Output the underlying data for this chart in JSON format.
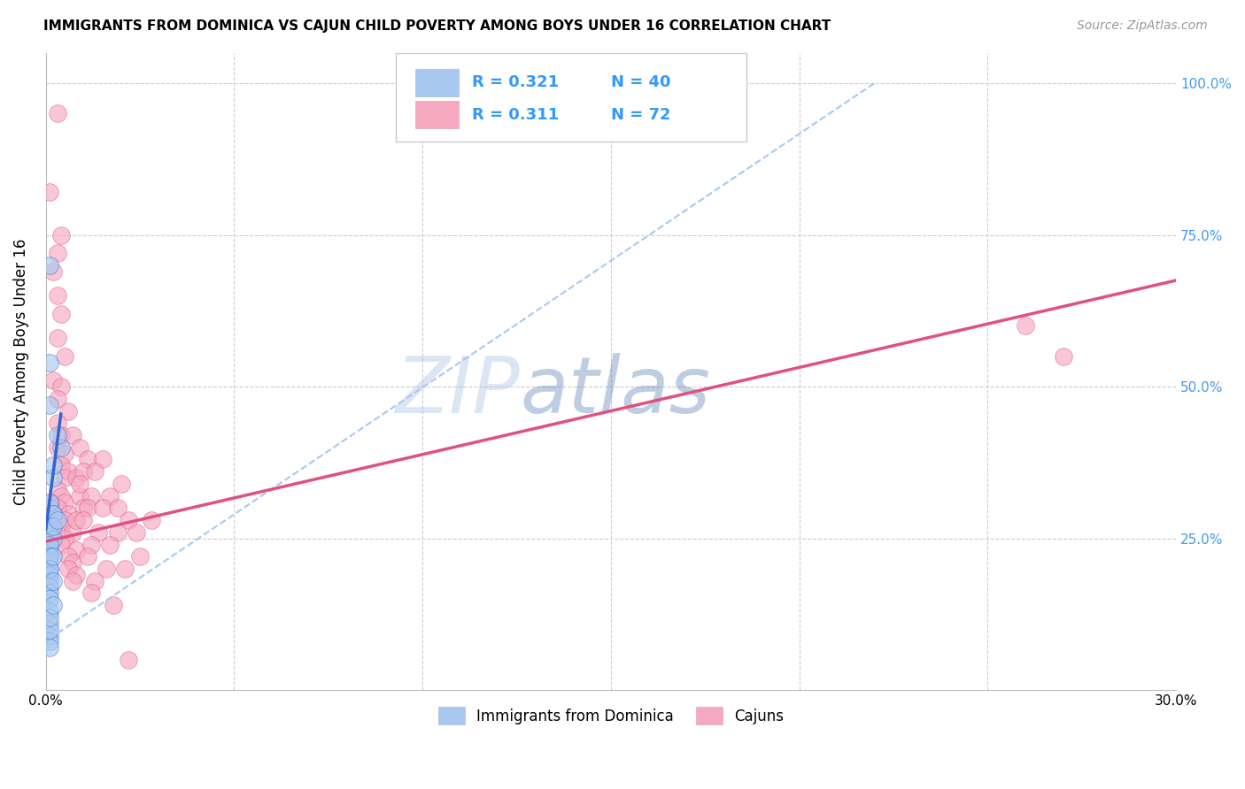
{
  "title": "IMMIGRANTS FROM DOMINICA VS CAJUN CHILD POVERTY AMONG BOYS UNDER 16 CORRELATION CHART",
  "source": "Source: ZipAtlas.com",
  "ylabel": "Child Poverty Among Boys Under 16",
  "xlim": [
    0.0,
    0.3
  ],
  "ylim": [
    0.0,
    1.05
  ],
  "watermark_zip": "ZIP",
  "watermark_atlas": "atlas",
  "legend_R1": "R = 0.321",
  "legend_N1": "N = 40",
  "legend_R2": "R = 0.311",
  "legend_N2": "N = 72",
  "blue_color": "#A8C8F0",
  "pink_color": "#F5A8C0",
  "blue_line_color": "#3366CC",
  "pink_line_color": "#E05080",
  "blue_dashed_color": "#A8C8F0",
  "legend_text_color": "#3399FF",
  "grid_color": "#CCCCCC",
  "background_color": "#FFFFFF",
  "blue_scatter_x": [
    0.001,
    0.002,
    0.001,
    0.001,
    0.002,
    0.001,
    0.001,
    0.001,
    0.002,
    0.001,
    0.001,
    0.001,
    0.002,
    0.001,
    0.001,
    0.001,
    0.002,
    0.001,
    0.001,
    0.001,
    0.001,
    0.001,
    0.001,
    0.001,
    0.002,
    0.001,
    0.001,
    0.002,
    0.001,
    0.001,
    0.002,
    0.001,
    0.004,
    0.001,
    0.001,
    0.001,
    0.003,
    0.001,
    0.003,
    0.002
  ],
  "blue_scatter_y": [
    0.3,
    0.35,
    0.28,
    0.26,
    0.29,
    0.24,
    0.22,
    0.31,
    0.29,
    0.27,
    0.23,
    0.21,
    0.25,
    0.2,
    0.19,
    0.18,
    0.27,
    0.24,
    0.22,
    0.2,
    0.17,
    0.16,
    0.15,
    0.13,
    0.22,
    0.11,
    0.09,
    0.18,
    0.08,
    0.07,
    0.37,
    0.47,
    0.4,
    0.54,
    0.7,
    0.1,
    0.28,
    0.12,
    0.42,
    0.14
  ],
  "pink_scatter_x": [
    0.003,
    0.001,
    0.004,
    0.003,
    0.002,
    0.003,
    0.004,
    0.003,
    0.005,
    0.002,
    0.004,
    0.003,
    0.006,
    0.003,
    0.004,
    0.003,
    0.005,
    0.004,
    0.006,
    0.005,
    0.003,
    0.004,
    0.005,
    0.003,
    0.006,
    0.005,
    0.004,
    0.007,
    0.005,
    0.004,
    0.008,
    0.006,
    0.007,
    0.006,
    0.008,
    0.007,
    0.009,
    0.008,
    0.01,
    0.008,
    0.007,
    0.009,
    0.011,
    0.01,
    0.009,
    0.012,
    0.011,
    0.01,
    0.014,
    0.012,
    0.011,
    0.016,
    0.013,
    0.012,
    0.018,
    0.015,
    0.013,
    0.02,
    0.017,
    0.015,
    0.022,
    0.019,
    0.017,
    0.025,
    0.021,
    0.019,
    0.028,
    0.024,
    0.022,
    0.26,
    0.27,
    0.001
  ],
  "pink_scatter_y": [
    0.95,
    0.82,
    0.75,
    0.72,
    0.69,
    0.65,
    0.62,
    0.58,
    0.55,
    0.51,
    0.5,
    0.48,
    0.46,
    0.44,
    0.42,
    0.4,
    0.39,
    0.37,
    0.36,
    0.35,
    0.33,
    0.32,
    0.31,
    0.3,
    0.29,
    0.28,
    0.27,
    0.26,
    0.25,
    0.24,
    0.23,
    0.22,
    0.21,
    0.2,
    0.19,
    0.18,
    0.32,
    0.35,
    0.3,
    0.28,
    0.42,
    0.4,
    0.38,
    0.36,
    0.34,
    0.32,
    0.3,
    0.28,
    0.26,
    0.24,
    0.22,
    0.2,
    0.18,
    0.16,
    0.14,
    0.38,
    0.36,
    0.34,
    0.32,
    0.3,
    0.28,
    0.26,
    0.24,
    0.22,
    0.2,
    0.3,
    0.28,
    0.26,
    0.05,
    0.6,
    0.55,
    0.31
  ],
  "blue_regline_x": [
    0.0,
    0.004
  ],
  "blue_regline_y": [
    0.265,
    0.455
  ],
  "blue_dashline_x": [
    0.001,
    0.22
  ],
  "blue_dashline_y": [
    0.085,
    1.0
  ],
  "pink_regline_x": [
    0.0,
    0.3
  ],
  "pink_regline_y": [
    0.245,
    0.675
  ]
}
